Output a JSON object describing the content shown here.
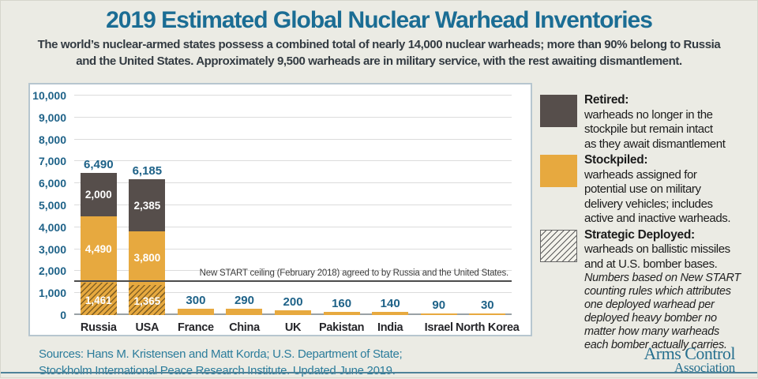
{
  "header": {
    "title": "2019 Estimated Global Nuclear Warhead Inventories",
    "subtitle_line1": "The world’s nuclear-armed states possess a combined total of nearly 14,000 nuclear warheads; more than 90% belong to Russia",
    "subtitle_line2": "and the United States. Approximately 9,500 warheads are in military service, with the rest awaiting dismantlement."
  },
  "chart_data": {
    "type": "bar",
    "stacked": true,
    "title": "2019 Estimated Global Nuclear Warhead Inventories",
    "xlabel": "",
    "ylabel": "",
    "ylim": [
      0,
      10000
    ],
    "grid": true,
    "legend_position": "right",
    "yticks": [
      {
        "value": 10000,
        "label": "10,000"
      },
      {
        "value": 9000,
        "label": "9,000"
      },
      {
        "value": 8000,
        "label": "8,000"
      },
      {
        "value": 7000,
        "label": "7,000"
      },
      {
        "value": 6000,
        "label": "6,000"
      },
      {
        "value": 5000,
        "label": "5,000"
      },
      {
        "value": 4000,
        "label": "4,000"
      },
      {
        "value": 3000,
        "label": "3,000"
      },
      {
        "value": 2000,
        "label": "2,000"
      },
      {
        "value": 1000,
        "label": "1,000"
      },
      {
        "value": 0,
        "label": "0"
      }
    ],
    "categories": [
      "Russia",
      "USA",
      "France",
      "China",
      "UK",
      "Pakistan",
      "India",
      "Israel",
      "North Korea"
    ],
    "totals": [
      6490,
      6185,
      300,
      290,
      200,
      160,
      140,
      90,
      30
    ],
    "total_labels": [
      "6,490",
      "6,185",
      "300",
      "290",
      "200",
      "160",
      "140",
      "90",
      "30"
    ],
    "series": [
      {
        "name": "Retired",
        "color": "#564e4b",
        "values": [
          2000,
          2385,
          0,
          0,
          0,
          0,
          0,
          0,
          0
        ],
        "labels": [
          "2,000",
          "2,385",
          "",
          "",
          "",
          "",
          "",
          "",
          ""
        ]
      },
      {
        "name": "Stockpiled",
        "color": "#e7a93f",
        "values": [
          4490,
          3800,
          300,
          290,
          200,
          160,
          140,
          90,
          30
        ],
        "labels": [
          "4,490",
          "3,800",
          "",
          "",
          "",
          "",
          "",
          "",
          ""
        ]
      },
      {
        "name": "Strategic Deployed",
        "pattern": "diagonal-hatch",
        "subset_of": "Stockpiled",
        "values": [
          1461,
          1365,
          0,
          0,
          0,
          0,
          0,
          0,
          0
        ],
        "labels": [
          "1,461",
          "1,365",
          "",
          "",
          "",
          "",
          "",
          "",
          ""
        ]
      }
    ],
    "ceiling": {
      "value": 1550,
      "label": "New START ceiling (February 2018) agreed to by Russia and the United States."
    }
  },
  "legend": {
    "items": [
      {
        "key": "retired",
        "title": "Retired:",
        "description": "warheads no longer in the\nstockpile but remain intact\nas they await dismantlement",
        "note": ""
      },
      {
        "key": "stockpiled",
        "title": "Stockpiled:",
        "description": "warheads assigned for\npotential use on military\ndelivery vehicles; includes\nactive and inactive warheads.",
        "note": ""
      },
      {
        "key": "deployed",
        "title": "Strategic Deployed:",
        "description": "warheads on ballistic missiles\nand at U.S. bomber bases.",
        "note": "Numbers based on New START\ncounting rules which attributes\none deployed warhead per\ndeployed heavy bomber no\nmatter how many warheads\neach bomber actually carries."
      }
    ]
  },
  "footer": {
    "sources_line1": "Sources: Hans M. Kristensen and Matt Korda; U.S. Department of State;",
    "sources_line2": "Stockholm International Peace Research Institute. Updated June 2019.",
    "logo_line1": "Arms Control",
    "logo_line2": "Association"
  },
  "colors": {
    "background": "#ebebe4",
    "panel_border": "#b7c6cf",
    "title_teal": "#1b6d94",
    "axis_blue": "#1e6288",
    "retired_gray": "#564e4b",
    "stockpiled_gold": "#e7a93f",
    "ceiling_line": "#4c4c4c",
    "sources_teal": "#2b7c9b",
    "bottom_rule_teal": "#4e8399"
  }
}
